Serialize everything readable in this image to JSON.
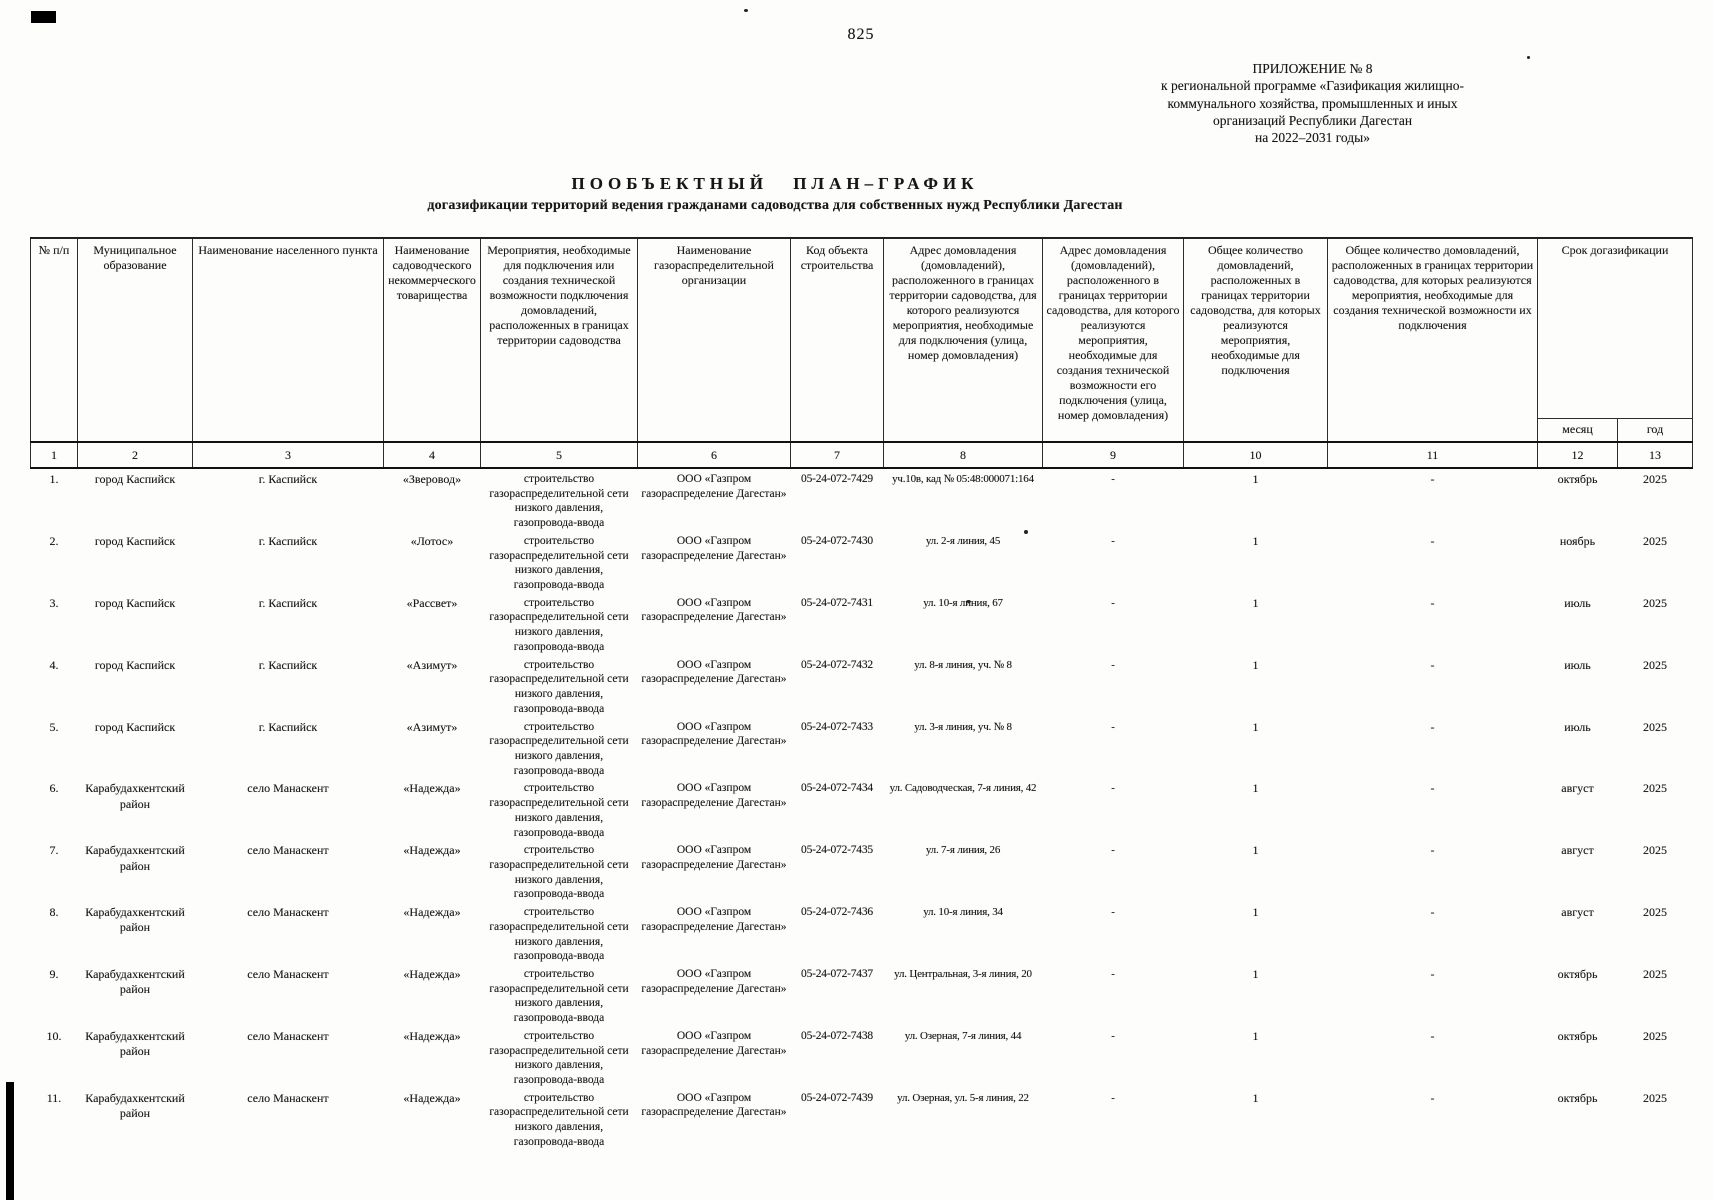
{
  "page": {
    "page_number": "825",
    "appendix": {
      "lines": [
        "ПРИЛОЖЕНИЕ № 8",
        "к региональной программе «Газификация жилищно-",
        "коммунального хозяйства, промышленных и иных",
        "организаций Республики Дагестан",
        "на 2022–2031 годы»"
      ]
    },
    "title": "ПООБЪЕКТНЫЙ ПЛАН–ГРАФИК",
    "subtitle": "догазификации территорий ведения гражданами садоводства для собственных нужд Республики Дагестан"
  },
  "table": {
    "headers": [
      "№ п/п",
      "Муниципальное образование",
      "Наименование населенного пункта",
      "Наименование садоводческого некоммерческого товарищества",
      "Мероприятия, необходимые для подключения или создания технической возможности подключения домовладений, расположенных в границах территории садоводства",
      "Наименование газораспределительной организации",
      "Код объекта строительства",
      "Адрес домовладения (домовладений), расположенного в границах территории садоводства, для которого реализуются мероприятия, необходимые для подключения (улица, номер домовладения)",
      "Адрес домовладения (домовладений), расположенного в границах территории садоводства, для которого реализуются мероприятия, необходимые для создания технической возможности его подключения (улица, номер домовладения)",
      "Общее количество домовладений, расположенных в границах территории садоводства, для которых реализуются мероприятия, необходимые для подключения",
      "Общее количество домовладений, расположенных в границах территории садоводства, для которых реализуются мероприятия, необходимые для создания технической возможности их подключения",
      "Срок догазификации"
    ],
    "sub_headers": [
      "месяц",
      "год"
    ],
    "column_numbers": [
      "1",
      "2",
      "3",
      "4",
      "5",
      "6",
      "7",
      "8",
      "9",
      "10",
      "11",
      "12",
      "13"
    ],
    "rows": [
      {
        "num": "1.",
        "municipality": "город Каспийск",
        "settlement": "г. Каспийск",
        "snt": "«Зверовод»",
        "measures": "строительство газораспределительной сети низкого давления, газопровода-ввода",
        "org": "ООО «Газпром газораспределение Дагестан»",
        "code": "05-24-072-7429",
        "address_connection": "уч.10в, кад № 05:48:000071:164",
        "address_technical": "-",
        "count_connection": "1",
        "count_technical": "-",
        "month": "октябрь",
        "year": "2025"
      },
      {
        "num": "2.",
        "municipality": "город Каспийск",
        "settlement": "г. Каспийск",
        "snt": "«Лотос»",
        "measures": "строительство газораспределительной сети низкого давления, газопровода-ввода",
        "org": "ООО «Газпром газораспределение Дагестан»",
        "code": "05-24-072-7430",
        "address_connection": "ул. 2-я линия, 45",
        "address_technical": "-",
        "count_connection": "1",
        "count_technical": "-",
        "month": "ноябрь",
        "year": "2025"
      },
      {
        "num": "3.",
        "municipality": "город Каспийск",
        "settlement": "г. Каспийск",
        "snt": "«Рассвет»",
        "measures": "строительство газораспределительной сети низкого давления, газопровода-ввода",
        "org": "ООО «Газпром газораспределение Дагестан»",
        "code": "05-24-072-7431",
        "address_connection": "ул. 10-я линия, 67",
        "address_technical": "-",
        "count_connection": "1",
        "count_technical": "-",
        "month": "июль",
        "year": "2025"
      },
      {
        "num": "4.",
        "municipality": "город Каспийск",
        "settlement": "г. Каспийск",
        "snt": "«Азимут»",
        "measures": "строительство газораспределительной сети низкого давления, газопровода-ввода",
        "org": "ООО «Газпром газораспределение Дагестан»",
        "code": "05-24-072-7432",
        "address_connection": "ул. 8-я линия, уч. № 8",
        "address_technical": "-",
        "count_connection": "1",
        "count_technical": "-",
        "month": "июль",
        "year": "2025"
      },
      {
        "num": "5.",
        "municipality": "город Каспийск",
        "settlement": "г. Каспийск",
        "snt": "«Азимут»",
        "measures": "строительство газораспределительной сети низкого давления, газопровода-ввода",
        "org": "ООО «Газпром газораспределение Дагестан»",
        "code": "05-24-072-7433",
        "address_connection": "ул. 3-я линия, уч. № 8",
        "address_technical": "-",
        "count_connection": "1",
        "count_technical": "-",
        "month": "июль",
        "year": "2025"
      },
      {
        "num": "6.",
        "municipality": "Карабудахкентский район",
        "settlement": "село Манаскент",
        "snt": "«Надежда»",
        "measures": "строительство газораспределительной сети низкого давления, газопровода-ввода",
        "org": "ООО «Газпром газораспределение Дагестан»",
        "code": "05-24-072-7434",
        "address_connection": "ул. Садоводческая, 7-я линия, 42",
        "address_technical": "-",
        "count_connection": "1",
        "count_technical": "-",
        "month": "август",
        "year": "2025"
      },
      {
        "num": "7.",
        "municipality": "Карабудахкентский район",
        "settlement": "село Манаскент",
        "snt": "«Надежда»",
        "measures": "строительство газораспределительной сети низкого давления, газопровода-ввода",
        "org": "ООО «Газпром газораспределение Дагестан»",
        "code": "05-24-072-7435",
        "address_connection": "ул. 7-я линия, 26",
        "address_technical": "-",
        "count_connection": "1",
        "count_technical": "-",
        "month": "август",
        "year": "2025"
      },
      {
        "num": "8.",
        "municipality": "Карабудахкентский район",
        "settlement": "село Манаскент",
        "snt": "«Надежда»",
        "measures": "строительство газораспределительной сети низкого давления, газопровода-ввода",
        "org": "ООО «Газпром газораспределение Дагестан»",
        "code": "05-24-072-7436",
        "address_connection": "ул. 10-я линия, 34",
        "address_technical": "-",
        "count_connection": "1",
        "count_technical": "-",
        "month": "август",
        "year": "2025"
      },
      {
        "num": "9.",
        "municipality": "Карабудахкентский район",
        "settlement": "село Манаскент",
        "snt": "«Надежда»",
        "measures": "строительство газораспределительной сети низкого давления, газопровода-ввода",
        "org": "ООО «Газпром газораспределение Дагестан»",
        "code": "05-24-072-7437",
        "address_connection": "ул. Центральная, 3-я линия, 20",
        "address_technical": "-",
        "count_connection": "1",
        "count_technical": "-",
        "month": "октябрь",
        "year": "2025"
      },
      {
        "num": "10.",
        "municipality": "Карабудахкентский район",
        "settlement": "село Манаскент",
        "snt": "«Надежда»",
        "measures": "строительство газораспределительной сети низкого давления, газопровода-ввода",
        "org": "ООО «Газпром газораспределение Дагестан»",
        "code": "05-24-072-7438",
        "address_connection": "ул. Озерная, 7-я линия, 44",
        "address_technical": "-",
        "count_connection": "1",
        "count_technical": "-",
        "month": "октябрь",
        "year": "2025"
      },
      {
        "num": "11.",
        "municipality": "Карабудахкентский район",
        "settlement": "село Манаскент",
        "snt": "«Надежда»",
        "measures": "строительство газораспределительной сети низкого давления, газопровода-ввода",
        "org": "ООО «Газпром газораспределение Дагестан»",
        "code": "05-24-072-7439",
        "address_connection": "ул. Озерная, ул. 5-я линия, 22",
        "address_technical": "-",
        "count_connection": "1",
        "count_technical": "-",
        "month": "октябрь",
        "year": "2025"
      }
    ]
  }
}
